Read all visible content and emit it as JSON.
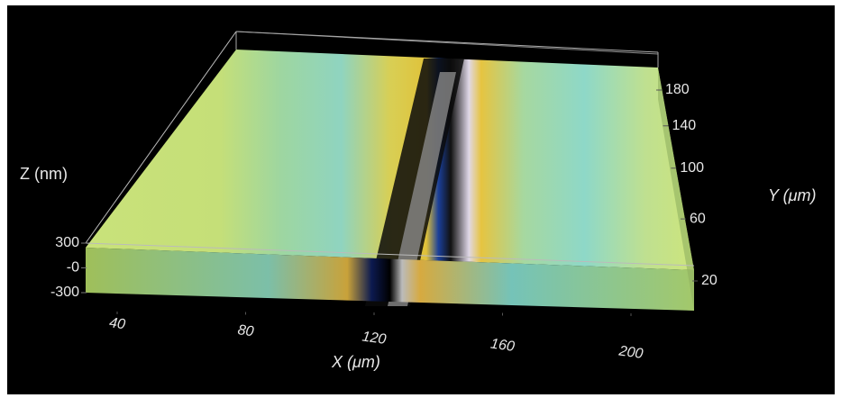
{
  "chart_data": {
    "type": "surface3d",
    "xlabel": "X (μm)",
    "ylabel": "Y (μm)",
    "zlabel": "Z (nm)",
    "xticks": [
      40,
      80,
      120,
      160,
      200
    ],
    "yticks": [
      20,
      60,
      100,
      140,
      180
    ],
    "zticks": [
      -300,
      {
        "value": 0,
        "label": "-0"
      },
      300
    ]
  }
}
